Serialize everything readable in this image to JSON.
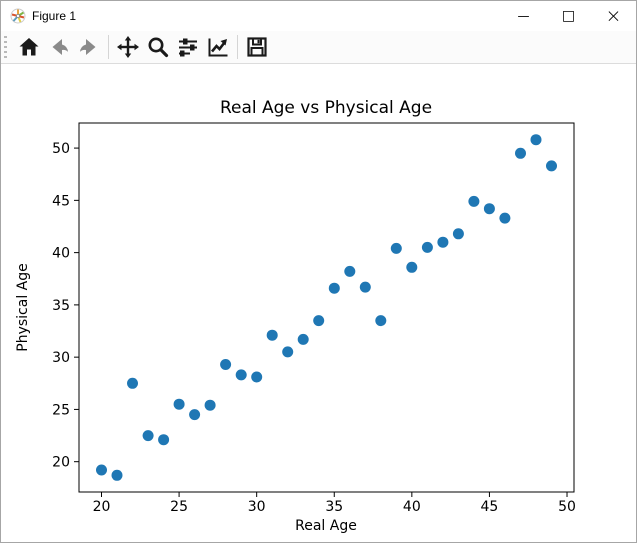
{
  "window": {
    "title": "Figure 1",
    "app_icon": "matplotlib-logo",
    "controls": {
      "minimize": "—",
      "maximize": "□",
      "close": "×"
    }
  },
  "toolbar": {
    "items": [
      {
        "name": "home",
        "icon": "home-icon",
        "enabled": true
      },
      {
        "name": "back",
        "icon": "arrow-left-icon",
        "enabled": false
      },
      {
        "name": "forward",
        "icon": "arrow-right-icon",
        "enabled": false
      },
      {
        "name": "pan",
        "icon": "move-arrows-icon",
        "enabled": true
      },
      {
        "name": "zoom",
        "icon": "magnifier-icon",
        "enabled": true
      },
      {
        "name": "configure-subplots",
        "icon": "sliders-icon",
        "enabled": true
      },
      {
        "name": "edit-axes",
        "icon": "line-chart-icon",
        "enabled": true
      },
      {
        "name": "save",
        "icon": "floppy-disk-icon",
        "enabled": true
      }
    ]
  },
  "chart_data": {
    "type": "scatter",
    "title": "Real Age vs Physical Age",
    "xlabel": "Real Age",
    "ylabel": "Physical Age",
    "x": [
      20,
      21,
      22,
      23,
      24,
      25,
      26,
      27,
      28,
      29,
      30,
      31,
      32,
      33,
      34,
      35,
      36,
      37,
      38,
      39,
      40,
      41,
      42,
      43,
      44,
      45,
      46,
      47,
      48,
      49
    ],
    "y": [
      19.2,
      18.7,
      27.5,
      22.5,
      22.1,
      25.5,
      24.5,
      25.4,
      29.3,
      28.3,
      28.1,
      32.1,
      30.5,
      31.7,
      33.5,
      36.6,
      38.2,
      36.7,
      33.5,
      40.4,
      38.6,
      40.5,
      41.0,
      41.8,
      44.9,
      44.2,
      43.3,
      49.5,
      50.8,
      48.3
    ],
    "xticks": [
      20,
      25,
      30,
      35,
      40,
      45,
      50
    ],
    "yticks": [
      20,
      25,
      30,
      35,
      40,
      45,
      50
    ],
    "xlim": [
      18.55,
      50.45
    ],
    "ylim": [
      17.1,
      52.4
    ],
    "marker_color": "#1f77b4",
    "grid": false,
    "legend": null
  }
}
